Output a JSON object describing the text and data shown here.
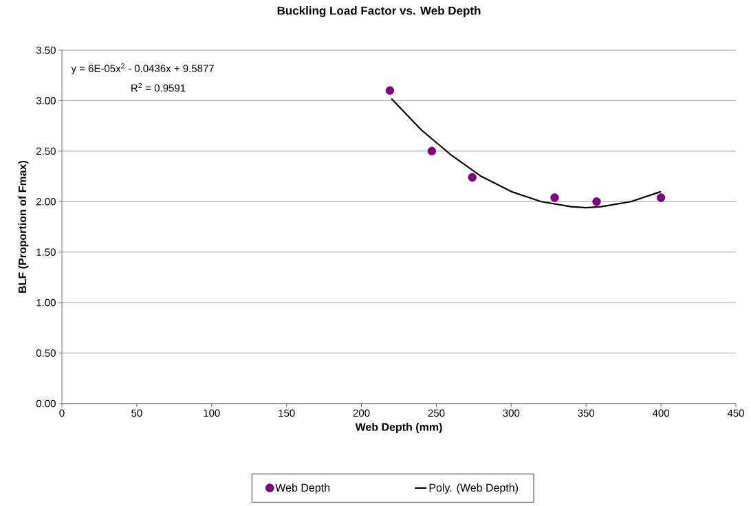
{
  "chart_data": {
    "type": "scatter",
    "title": "Buckling Load Factor vs. Web Depth",
    "xlabel": "Web Depth (mm)",
    "ylabel": "BLF (Proportion of Fmax)",
    "annotations": [
      "y = 6E-05x$^{2}$ - 0.0436x + 9.5877",
      "R$^{2}$ = 0.9591"
    ],
    "series": [
      {
        "name": "Web Depth",
        "color": "#800080",
        "marker": "circle",
        "x": [
          219,
          247,
          274,
          329,
          357,
          400
        ],
        "values": [
          3.1,
          2.5,
          2.24,
          2.04,
          2.0,
          2.04
        ]
      },
      {
        "name": "Poly. (Web Depth)",
        "type": "line",
        "color": "#000000",
        "marker": "none",
        "line_style": "solid",
        "x": [
          220,
          240,
          260,
          280,
          300,
          320,
          340,
          350,
          360,
          380,
          400
        ],
        "values": [
          3.02,
          2.71,
          2.46,
          2.25,
          2.1,
          2.0,
          1.95,
          1.94,
          1.95,
          2.0,
          2.1
        ]
      }
    ],
    "xlim": [
      0,
      450
    ],
    "xticks": [
      0,
      50,
      100,
      150,
      200,
      250,
      300,
      350,
      400,
      450
    ],
    "ylim": [
      0,
      3.5
    ],
    "yticks": [
      {
        "value": 0,
        "label": "0.00"
      },
      {
        "value": 0.5,
        "label": "0.50"
      },
      {
        "value": 1,
        "label": "1.00"
      },
      {
        "value": 1.5,
        "label": "1.50"
      },
      {
        "value": 2,
        "label": "2.00"
      },
      {
        "value": 2.5,
        "label": "2.50"
      },
      {
        "value": 3,
        "label": "3.00"
      },
      {
        "value": 3.5,
        "label": "3.50"
      }
    ],
    "grid": "y",
    "legend": "bottom"
  }
}
